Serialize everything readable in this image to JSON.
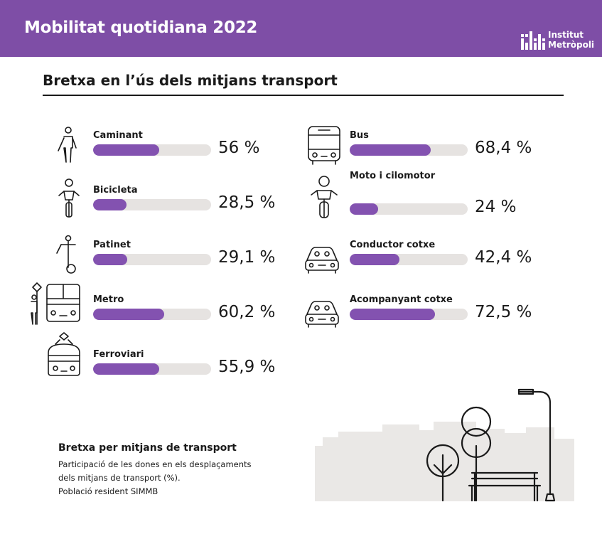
{
  "header": {
    "title": "Mobilitat quotidiana 2022",
    "logo_line1": "Institut",
    "logo_line2": "Metròpoli"
  },
  "section_title": "Bretxa en l’ús dels mitjans transport",
  "chart_data": {
    "type": "bar",
    "title": "Bretxa per mitjans de transport",
    "unit": "%",
    "ylim": [
      0,
      100
    ],
    "categories": [
      "Caminant",
      "Bicicleta",
      "Patinet",
      "Metro",
      "Ferroviari",
      "Bus",
      "Moto i cilomotor",
      "Conductor cotxe",
      "Acompanyant cotxe"
    ],
    "values": [
      56,
      28.5,
      29.1,
      60.2,
      55.9,
      68.4,
      24,
      42.4,
      72.5
    ],
    "value_labels": [
      "56 %",
      "28,5 %",
      "29,1 %",
      "60,2 %",
      "55,9 %",
      "68,4 %",
      "24 %",
      "42,4 %",
      "72,5 %"
    ]
  },
  "icons": [
    "walking-person-icon",
    "bicycle-icon",
    "scooter-icon",
    "metro-icon",
    "train-icon",
    "bus-icon",
    "motorcycle-icon",
    "car-driver-icon",
    "car-passenger-icon"
  ],
  "note": {
    "title": "Bretxa per mitjans de transport",
    "line1": "Participació de les dones en els desplaçaments",
    "line2": "dels mitjans de transport (%).",
    "line3": "Població resident SIMMB"
  },
  "colors": {
    "header": "#7e4ea6",
    "bar_fill": "#8352b0",
    "bar_track": "#e6e3e1",
    "city_silhouette": "#eae8e6"
  }
}
